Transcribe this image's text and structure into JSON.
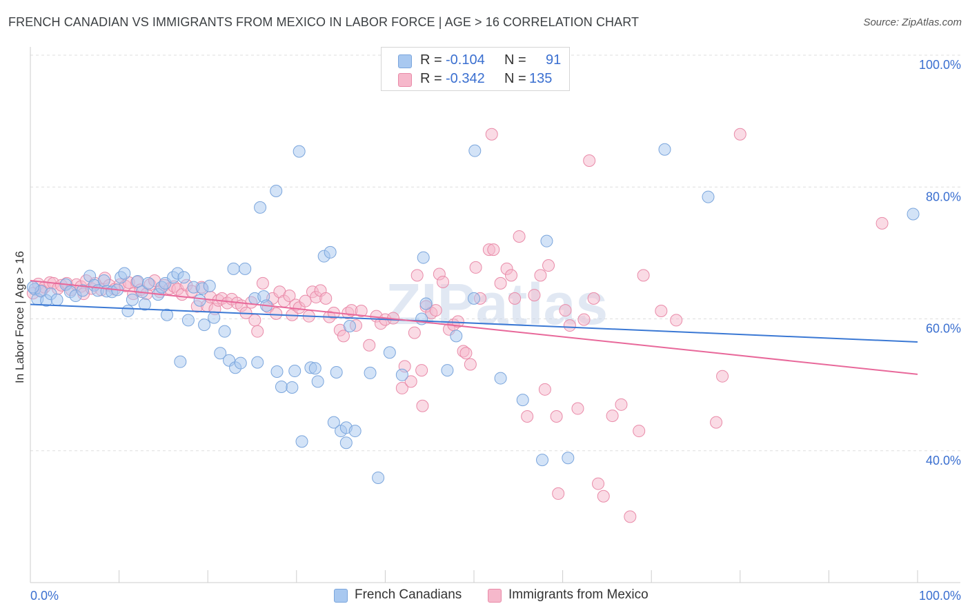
{
  "title": "FRENCH CANADIAN VS IMMIGRANTS FROM MEXICO IN LABOR FORCE | AGE > 16 CORRELATION CHART",
  "source": "Source: ZipAtlas.com",
  "watermark": "ZIPatlas",
  "legend": {
    "rows": [
      {
        "r_label": "R =",
        "r_value": "-0.104",
        "n_label": "N =",
        "n_value": "91"
      },
      {
        "r_label": "R =",
        "r_value": "-0.342",
        "n_label": "N =",
        "n_value": "135"
      }
    ]
  },
  "colors": {
    "blue_fill": "#a8c8f0",
    "blue_stroke": "#7aa5dc",
    "blue_line": "#3a78d4",
    "pink_fill": "#f6b8cb",
    "pink_stroke": "#e98aa8",
    "pink_line": "#e8689a",
    "axis_label": "#3a6fd0"
  },
  "chart_data": {
    "type": "scatter",
    "title": "FRENCH CANADIAN VS IMMIGRANTS FROM MEXICO IN LABOR FORCE | AGE > 16 CORRELATION CHART",
    "xlabel": "",
    "ylabel": "In Labor Force | Age > 16",
    "xlim": [
      0,
      100
    ],
    "ylim": [
      20,
      100
    ],
    "x_tick_labels": [
      "0.0%",
      "100.0%"
    ],
    "y_ticks": [
      40,
      60,
      80,
      100
    ],
    "y_tick_labels": [
      "40.0%",
      "60.0%",
      "80.0%",
      "100.0%"
    ],
    "series": [
      {
        "name": "French Canadians",
        "color": "#a8c8f0",
        "trend": {
          "x": [
            0,
            100
          ],
          "y": [
            62.2,
            56.5
          ]
        },
        "points": [
          [
            0.5,
            64.5
          ],
          [
            0.8,
            63
          ],
          [
            1.2,
            64.2
          ],
          [
            1.8,
            62.8
          ],
          [
            2.3,
            63.8
          ],
          [
            3,
            62.9
          ],
          [
            4,
            65.2
          ],
          [
            4.5,
            64.1
          ],
          [
            5.1,
            63.5
          ],
          [
            5.9,
            64.3
          ],
          [
            6.7,
            66.5
          ],
          [
            7.2,
            65.1
          ],
          [
            7.6,
            64.3
          ],
          [
            8.3,
            65.8
          ],
          [
            8.6,
            64.2
          ],
          [
            9.2,
            64.1
          ],
          [
            9.8,
            64.4
          ],
          [
            10.2,
            66.3
          ],
          [
            10.6,
            66.9
          ],
          [
            11,
            61.2
          ],
          [
            11.5,
            62.9
          ],
          [
            12.1,
            65.7
          ],
          [
            12.6,
            64.1
          ],
          [
            12.9,
            62.2
          ],
          [
            13.3,
            65.4
          ],
          [
            14.4,
            63.7
          ],
          [
            14.8,
            64.8
          ],
          [
            15.2,
            65.4
          ],
          [
            15.4,
            60.6
          ],
          [
            16.1,
            66.3
          ],
          [
            16.6,
            66.9
          ],
          [
            16.9,
            53.5
          ],
          [
            17.3,
            66.3
          ],
          [
            17.8,
            59.8
          ],
          [
            18.4,
            64.8
          ],
          [
            19.1,
            62.8
          ],
          [
            19.4,
            64.6
          ],
          [
            19.6,
            59.1
          ],
          [
            20.2,
            65.0
          ],
          [
            20.7,
            60.2
          ],
          [
            21.4,
            54.8
          ],
          [
            21.9,
            58.1
          ],
          [
            22.4,
            53.7
          ],
          [
            22.9,
            67.6
          ],
          [
            23.1,
            52.6
          ],
          [
            23.7,
            53.3
          ],
          [
            24.2,
            67.6
          ],
          [
            25.3,
            63.1
          ],
          [
            25.6,
            53.4
          ],
          [
            25.9,
            76.9
          ],
          [
            26.3,
            63.4
          ],
          [
            26.6,
            62.0
          ],
          [
            27.7,
            79.4
          ],
          [
            27.8,
            52.0
          ],
          [
            28.3,
            49.7
          ],
          [
            29.5,
            49.6
          ],
          [
            29.8,
            52.1
          ],
          [
            30.3,
            85.4
          ],
          [
            30.6,
            41.4
          ],
          [
            31.6,
            52.6
          ],
          [
            32.1,
            52.5
          ],
          [
            32.4,
            50.5
          ],
          [
            33.1,
            69.5
          ],
          [
            33.8,
            70.1
          ],
          [
            34.2,
            44.3
          ],
          [
            34.5,
            51.9
          ],
          [
            35.0,
            43.0
          ],
          [
            35.6,
            41.2
          ],
          [
            35.6,
            43.5
          ],
          [
            36.0,
            58.9
          ],
          [
            36.6,
            43.0
          ],
          [
            38.3,
            51.8
          ],
          [
            39.2,
            35.9
          ],
          [
            40.5,
            54.9
          ],
          [
            41.9,
            51.5
          ],
          [
            44.1,
            60.0
          ],
          [
            44.3,
            69.3
          ],
          [
            44.6,
            62.3
          ],
          [
            47.0,
            52.2
          ],
          [
            48.0,
            57.4
          ],
          [
            50.0,
            63.1
          ],
          [
            50.1,
            85.5
          ],
          [
            53.0,
            51.0
          ],
          [
            55.5,
            47.7
          ],
          [
            57.7,
            38.6
          ],
          [
            58.2,
            71.8
          ],
          [
            60.6,
            38.9
          ],
          [
            71.5,
            85.7
          ],
          [
            76.4,
            78.5
          ],
          [
            99.5,
            75.9
          ],
          [
            0.3,
            64.8
          ]
        ]
      },
      {
        "name": "Immigrants from Mexico",
        "color": "#f6b8cb",
        "trend": {
          "x": [
            0,
            100
          ],
          "y": [
            65.8,
            51.6
          ]
        },
        "points": [
          [
            0.3,
            63.9
          ],
          [
            0.9,
            65.3
          ],
          [
            1.3,
            64.3
          ],
          [
            1.6,
            64.8
          ],
          [
            2.2,
            65.5
          ],
          [
            2.6,
            65.4
          ],
          [
            3.1,
            64.6
          ],
          [
            3.5,
            65.1
          ],
          [
            4.1,
            65.4
          ],
          [
            4.6,
            64.4
          ],
          [
            5.2,
            65.2
          ],
          [
            5.7,
            64.9
          ],
          [
            6.0,
            63.8
          ],
          [
            6.3,
            65.8
          ],
          [
            6.9,
            64.6
          ],
          [
            7.3,
            65.4
          ],
          [
            8.0,
            64.4
          ],
          [
            8.4,
            66.2
          ],
          [
            8.9,
            65.1
          ],
          [
            9.5,
            64.5
          ],
          [
            10.1,
            65.2
          ],
          [
            10.7,
            65.0
          ],
          [
            11.1,
            65.5
          ],
          [
            11.6,
            63.8
          ],
          [
            12.0,
            65.6
          ],
          [
            12.4,
            64.4
          ],
          [
            13.1,
            63.8
          ],
          [
            13.5,
            65.2
          ],
          [
            14.0,
            65.8
          ],
          [
            14.6,
            64.1
          ],
          [
            15.1,
            65.1
          ],
          [
            15.7,
            64.6
          ],
          [
            16.2,
            64.9
          ],
          [
            16.6,
            64.5
          ],
          [
            17.1,
            63.7
          ],
          [
            17.6,
            65.1
          ],
          [
            18.2,
            64.2
          ],
          [
            18.8,
            61.9
          ],
          [
            19.3,
            64.8
          ],
          [
            19.9,
            62.0
          ],
          [
            20.3,
            63.3
          ],
          [
            20.8,
            61.5
          ],
          [
            21.2,
            62.8
          ],
          [
            21.6,
            63.1
          ],
          [
            22.2,
            62.4
          ],
          [
            22.7,
            63.0
          ],
          [
            23.3,
            62.4
          ],
          [
            23.8,
            62.0
          ],
          [
            24.3,
            60.9
          ],
          [
            24.9,
            62.5
          ],
          [
            25.3,
            59.8
          ],
          [
            25.6,
            58.1
          ],
          [
            26.2,
            65.4
          ],
          [
            26.8,
            61.8
          ],
          [
            27.3,
            63.1
          ],
          [
            27.7,
            60.8
          ],
          [
            28.1,
            64.1
          ],
          [
            28.6,
            62.7
          ],
          [
            29.2,
            63.5
          ],
          [
            29.5,
            60.6
          ],
          [
            29.9,
            62.1
          ],
          [
            30.3,
            61.7
          ],
          [
            31.0,
            62.7
          ],
          [
            31.4,
            60.4
          ],
          [
            31.8,
            64.1
          ],
          [
            32.2,
            63.3
          ],
          [
            32.7,
            64.3
          ],
          [
            33.3,
            63.1
          ],
          [
            33.7,
            60.3
          ],
          [
            34.2,
            60.9
          ],
          [
            34.9,
            58.3
          ],
          [
            35.3,
            57.4
          ],
          [
            35.8,
            60.9
          ],
          [
            36.2,
            61.3
          ],
          [
            36.7,
            59.0
          ],
          [
            37.3,
            61.2
          ],
          [
            38.2,
            56.0
          ],
          [
            39.0,
            60.4
          ],
          [
            39.5,
            59.3
          ],
          [
            40.0,
            59.9
          ],
          [
            40.9,
            60.1
          ],
          [
            41.9,
            49.5
          ],
          [
            42.2,
            52.8
          ],
          [
            42.9,
            50.5
          ],
          [
            43.3,
            57.9
          ],
          [
            43.6,
            66.6
          ],
          [
            44.1,
            52.2
          ],
          [
            44.6,
            61.9
          ],
          [
            45.2,
            60.9
          ],
          [
            45.7,
            61.3
          ],
          [
            46.1,
            66.8
          ],
          [
            46.5,
            65.6
          ],
          [
            47.2,
            58.4
          ],
          [
            47.7,
            59.1
          ],
          [
            48.2,
            59.6
          ],
          [
            48.8,
            55.1
          ],
          [
            49.1,
            54.8
          ],
          [
            49.6,
            53.1
          ],
          [
            50.2,
            67.8
          ],
          [
            50.7,
            63.1
          ],
          [
            51.7,
            70.5
          ],
          [
            52.2,
            70.5
          ],
          [
            53.0,
            65.4
          ],
          [
            53.7,
            67.6
          ],
          [
            54.2,
            66.6
          ],
          [
            54.6,
            63.1
          ],
          [
            55.1,
            72.5
          ],
          [
            56.0,
            45.2
          ],
          [
            56.8,
            63.6
          ],
          [
            57.5,
            66.6
          ],
          [
            58.0,
            49.3
          ],
          [
            58.4,
            68.1
          ],
          [
            59.3,
            45.2
          ],
          [
            60.3,
            61.3
          ],
          [
            60.8,
            59.0
          ],
          [
            61.7,
            46.4
          ],
          [
            62.4,
            59.9
          ],
          [
            63.5,
            63.1
          ],
          [
            64.0,
            35.0
          ],
          [
            64.6,
            33.1
          ],
          [
            65.6,
            45.3
          ],
          [
            66.6,
            47.0
          ],
          [
            67.6,
            30.0
          ],
          [
            68.6,
            43.0
          ],
          [
            69.1,
            66.6
          ],
          [
            71.1,
            61.2
          ],
          [
            72.8,
            59.8
          ],
          [
            77.3,
            44.3
          ],
          [
            78.0,
            51.3
          ],
          [
            80.0,
            88.0
          ],
          [
            96.0,
            74.5
          ],
          [
            59.5,
            33.5
          ],
          [
            52.0,
            88.0
          ],
          [
            63.0,
            84.0
          ],
          [
            44.2,
            46.8
          ]
        ]
      }
    ]
  }
}
